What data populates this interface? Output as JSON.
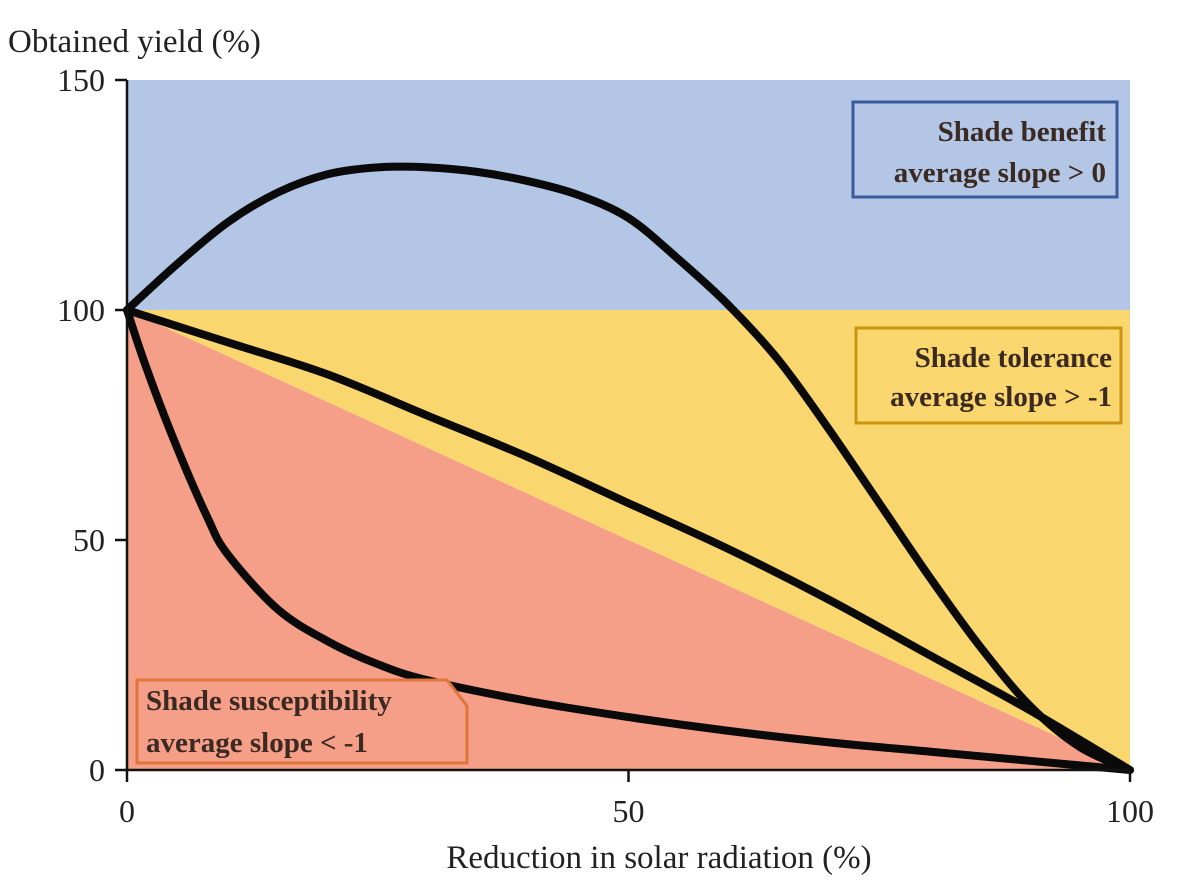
{
  "chart_data": {
    "type": "line",
    "ylabel": "Obtained yield (%)",
    "xlabel": "Reduction in solar radiation (%)",
    "xlim": [
      0,
      100
    ],
    "ylim": [
      0,
      150
    ],
    "xticks": [
      0,
      50,
      100
    ],
    "yticks": [
      0,
      50,
      100,
      150
    ],
    "x_tick_labels": [
      "0",
      "50",
      "100"
    ],
    "y_tick_labels": [
      "0",
      "50",
      "100",
      "150"
    ],
    "grid": false,
    "regions": [
      {
        "id": "benefit",
        "label_line1": "Shade benefit",
        "label_line2": "average slope > 0",
        "fill": "#b3c6e5",
        "border": "#3a5a9e"
      },
      {
        "id": "tolerance",
        "label_line1": "Shade tolerance",
        "label_line2": "average slope > -1",
        "fill": "#fad66e",
        "border": "#c9960f"
      },
      {
        "id": "susceptibility",
        "label_line1": "Shade susceptibility",
        "label_line2": "average slope < -1",
        "fill": "#f59e88",
        "border": "#e0753c"
      }
    ],
    "series": [
      {
        "values": [
          [
            0,
            100
          ],
          [
            5,
            110
          ],
          [
            10,
            119
          ],
          [
            15,
            125.5
          ],
          [
            20,
            129.5
          ],
          [
            25,
            131
          ],
          [
            30,
            131
          ],
          [
            35,
            130
          ],
          [
            40,
            128
          ],
          [
            45,
            125
          ],
          [
            50,
            120
          ],
          [
            55,
            111
          ],
          [
            60,
            101
          ],
          [
            65,
            89
          ],
          [
            70,
            74
          ],
          [
            75,
            58
          ],
          [
            80,
            42
          ],
          [
            85,
            27
          ],
          [
            90,
            14
          ],
          [
            95,
            5
          ],
          [
            100,
            0
          ]
        ]
      },
      {
        "values": [
          [
            0,
            100
          ],
          [
            10,
            93
          ],
          [
            20,
            86
          ],
          [
            30,
            77
          ],
          [
            40,
            68
          ],
          [
            50,
            58
          ],
          [
            60,
            48
          ],
          [
            70,
            37
          ],
          [
            80,
            25
          ],
          [
            90,
            13
          ],
          [
            100,
            0
          ]
        ]
      },
      {
        "values": [
          [
            0,
            100
          ],
          [
            2,
            87
          ],
          [
            5,
            70
          ],
          [
            8,
            55
          ],
          [
            10,
            47
          ],
          [
            15,
            35
          ],
          [
            20,
            28
          ],
          [
            25,
            23
          ],
          [
            30,
            19.5
          ],
          [
            40,
            15
          ],
          [
            50,
            11.5
          ],
          [
            60,
            8.5
          ],
          [
            70,
            6
          ],
          [
            80,
            4
          ],
          [
            90,
            2
          ],
          [
            100,
            0
          ]
        ]
      }
    ]
  }
}
